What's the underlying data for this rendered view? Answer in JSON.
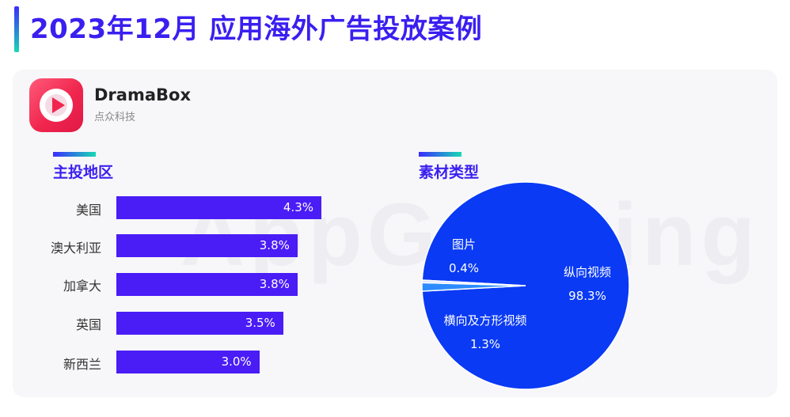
{
  "page": {
    "title": "2023年12月 应用海外广告投放案例"
  },
  "app": {
    "name": "DramaBox",
    "company": "点众科技"
  },
  "watermark": "AppGrowing",
  "colors": {
    "accent": "#3a1ff0",
    "bar": "#4a1cf6",
    "pie_main": "#0a3af4",
    "pie_light": "#d9e6ff",
    "pie_mid": "#2c8cff"
  },
  "chart_data": [
    {
      "type": "bar",
      "title": "主投地区",
      "categories": [
        "美国",
        "澳大利亚",
        "加拿大",
        "英国",
        "新西兰"
      ],
      "values": [
        4.3,
        3.8,
        3.8,
        3.5,
        3.0
      ],
      "value_labels": [
        "4.3%",
        "3.8%",
        "3.8%",
        "3.5%",
        "3.0%"
      ],
      "orientation": "horizontal",
      "unit": "%"
    },
    {
      "type": "pie",
      "title": "素材类型",
      "labels": [
        "纵向视频",
        "横向及方形视频",
        "图片"
      ],
      "values": [
        98.3,
        1.3,
        0.4
      ],
      "value_labels": [
        "98.3%",
        "1.3%",
        "0.4%"
      ]
    }
  ]
}
